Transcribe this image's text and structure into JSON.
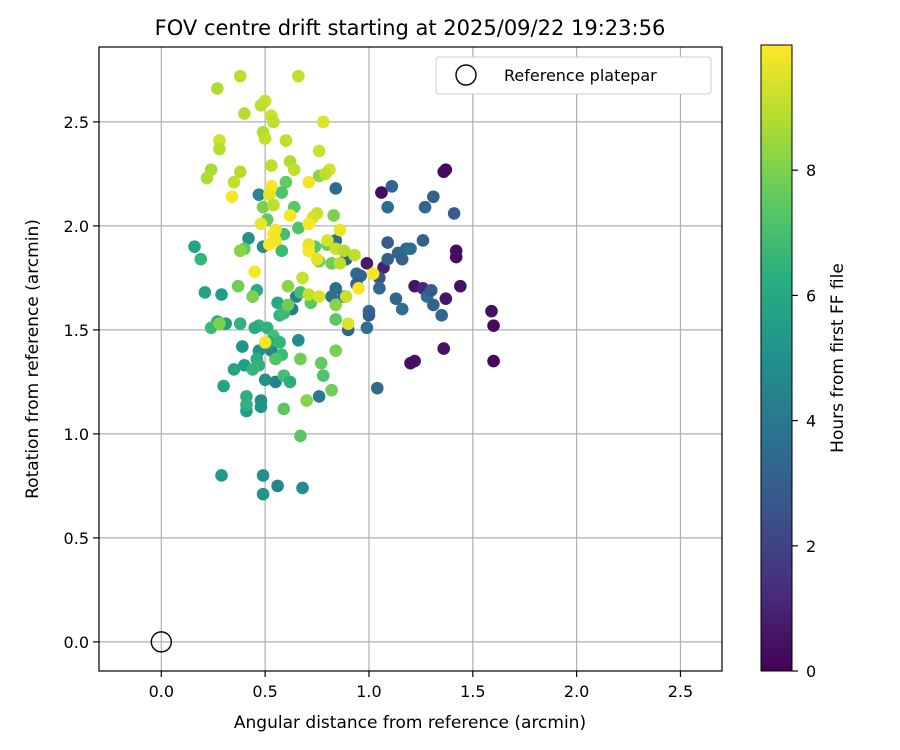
{
  "chart_data": {
    "type": "scatter",
    "title": "FOV centre drift starting at 2025/09/22 19:23:56",
    "xlabel": "Angular distance from reference (arcmin)",
    "ylabel": "Rotation from reference (arcmin)",
    "xlim": [
      -0.3,
      2.7
    ],
    "ylim": [
      -0.14,
      2.86
    ],
    "xticks": [
      0.0,
      0.5,
      1.0,
      1.5,
      2.0,
      2.5
    ],
    "xtick_labels": [
      "0.0",
      "0.5",
      "1.0",
      "1.5",
      "2.0",
      "2.5"
    ],
    "yticks": [
      0.0,
      0.5,
      1.0,
      1.5,
      2.0,
      2.5
    ],
    "ytick_labels": [
      "0.0",
      "0.5",
      "1.0",
      "1.5",
      "2.0",
      "2.5"
    ],
    "grid": true,
    "legend": {
      "entry": "Reference platepar",
      "placement": "top-right"
    },
    "reference_point": {
      "x": 0.0,
      "y": 0.0
    },
    "colorbar": {
      "label": "Hours from first FF file",
      "colormap": "viridis",
      "range": [
        0,
        10
      ],
      "ticks": [
        0,
        2,
        4,
        6,
        8
      ],
      "tick_labels": [
        "0",
        "2",
        "4",
        "6",
        "8"
      ]
    },
    "points": [
      {
        "x": 1.37,
        "y": 2.27,
        "c": 0.2
      },
      {
        "x": 1.36,
        "y": 2.26,
        "c": 0.3
      },
      {
        "x": 1.42,
        "y": 1.88,
        "c": 0.4
      },
      {
        "x": 1.42,
        "y": 1.85,
        "c": 0.3
      },
      {
        "x": 1.44,
        "y": 1.71,
        "c": 0.5
      },
      {
        "x": 1.37,
        "y": 1.65,
        "c": 0.6
      },
      {
        "x": 1.22,
        "y": 1.71,
        "c": 0.5
      },
      {
        "x": 1.59,
        "y": 1.59,
        "c": 0.4
      },
      {
        "x": 1.6,
        "y": 1.52,
        "c": 0.3
      },
      {
        "x": 1.6,
        "y": 1.35,
        "c": 0.2
      },
      {
        "x": 1.36,
        "y": 1.41,
        "c": 0.5
      },
      {
        "x": 1.22,
        "y": 1.35,
        "c": 0.6
      },
      {
        "x": 1.2,
        "y": 1.34,
        "c": 0.4
      },
      {
        "x": 1.06,
        "y": 2.16,
        "c": 0.3
      },
      {
        "x": 0.99,
        "y": 1.82,
        "c": 0.7
      },
      {
        "x": 1.07,
        "y": 1.8,
        "c": 0.9
      },
      {
        "x": 1.26,
        "y": 1.7,
        "c": 1.1
      },
      {
        "x": 1.11,
        "y": 2.19,
        "c": 3.2
      },
      {
        "x": 1.09,
        "y": 2.09,
        "c": 3.5
      },
      {
        "x": 1.31,
        "y": 2.14,
        "c": 3.1
      },
      {
        "x": 1.27,
        "y": 2.09,
        "c": 3.3
      },
      {
        "x": 1.41,
        "y": 2.06,
        "c": 2.9
      },
      {
        "x": 1.26,
        "y": 1.93,
        "c": 3.0
      },
      {
        "x": 1.18,
        "y": 1.89,
        "c": 3.4
      },
      {
        "x": 1.2,
        "y": 1.89,
        "c": 3.6
      },
      {
        "x": 1.14,
        "y": 1.87,
        "c": 3.2
      },
      {
        "x": 1.16,
        "y": 1.84,
        "c": 3.1
      },
      {
        "x": 1.09,
        "y": 1.92,
        "c": 2.8
      },
      {
        "x": 1.09,
        "y": 1.84,
        "c": 3.0
      },
      {
        "x": 1.05,
        "y": 1.75,
        "c": 2.7
      },
      {
        "x": 1.05,
        "y": 1.7,
        "c": 3.3
      },
      {
        "x": 0.94,
        "y": 1.77,
        "c": 3.5
      },
      {
        "x": 0.96,
        "y": 1.76,
        "c": 3.2
      },
      {
        "x": 0.94,
        "y": 1.72,
        "c": 3.0
      },
      {
        "x": 1.0,
        "y": 1.59,
        "c": 3.4
      },
      {
        "x": 1.0,
        "y": 1.57,
        "c": 3.0
      },
      {
        "x": 0.99,
        "y": 1.51,
        "c": 3.6
      },
      {
        "x": 0.9,
        "y": 1.5,
        "c": 3.3
      },
      {
        "x": 1.13,
        "y": 1.65,
        "c": 3.2
      },
      {
        "x": 1.16,
        "y": 1.6,
        "c": 3.6
      },
      {
        "x": 1.28,
        "y": 1.66,
        "c": 3.4
      },
      {
        "x": 1.31,
        "y": 1.62,
        "c": 3.1
      },
      {
        "x": 1.35,
        "y": 1.57,
        "c": 3.3
      },
      {
        "x": 1.3,
        "y": 1.69,
        "c": 2.9
      },
      {
        "x": 1.04,
        "y": 1.22,
        "c": 3.5
      },
      {
        "x": 0.84,
        "y": 2.18,
        "c": 3.4
      },
      {
        "x": 0.84,
        "y": 1.93,
        "c": 3.6
      },
      {
        "x": 0.89,
        "y": 1.84,
        "c": 3.2
      },
      {
        "x": 0.84,
        "y": 1.7,
        "c": 3.6
      },
      {
        "x": 0.82,
        "y": 1.66,
        "c": 3.8
      },
      {
        "x": 0.88,
        "y": 1.66,
        "c": 3.0
      },
      {
        "x": 0.76,
        "y": 1.18,
        "c": 4.0
      },
      {
        "x": 0.65,
        "y": 1.66,
        "c": 4.4
      },
      {
        "x": 0.63,
        "y": 1.6,
        "c": 4.2
      },
      {
        "x": 0.47,
        "y": 2.15,
        "c": 4.6
      },
      {
        "x": 0.42,
        "y": 1.94,
        "c": 5.0
      },
      {
        "x": 0.49,
        "y": 1.9,
        "c": 4.8
      },
      {
        "x": 0.39,
        "y": 1.42,
        "c": 5.2
      },
      {
        "x": 0.47,
        "y": 1.4,
        "c": 5.0
      },
      {
        "x": 0.53,
        "y": 1.4,
        "c": 4.6
      },
      {
        "x": 0.66,
        "y": 1.45,
        "c": 4.9
      },
      {
        "x": 0.48,
        "y": 1.16,
        "c": 4.8
      },
      {
        "x": 0.48,
        "y": 1.13,
        "c": 5.2
      },
      {
        "x": 0.55,
        "y": 1.25,
        "c": 4.4
      },
      {
        "x": 0.5,
        "y": 1.26,
        "c": 5.0
      },
      {
        "x": 0.49,
        "y": 0.8,
        "c": 5.0
      },
      {
        "x": 0.49,
        "y": 0.71,
        "c": 5.2
      },
      {
        "x": 0.56,
        "y": 0.75,
        "c": 4.6
      },
      {
        "x": 0.68,
        "y": 0.74,
        "c": 4.9
      },
      {
        "x": 0.29,
        "y": 0.8,
        "c": 5.4
      },
      {
        "x": 0.16,
        "y": 1.9,
        "c": 5.8
      },
      {
        "x": 0.19,
        "y": 1.84,
        "c": 6.6
      },
      {
        "x": 0.21,
        "y": 1.68,
        "c": 5.8
      },
      {
        "x": 0.29,
        "y": 1.67,
        "c": 5.6
      },
      {
        "x": 0.27,
        "y": 1.54,
        "c": 6.2
      },
      {
        "x": 0.31,
        "y": 1.53,
        "c": 5.6
      },
      {
        "x": 0.24,
        "y": 1.51,
        "c": 6.8
      },
      {
        "x": 0.38,
        "y": 1.53,
        "c": 6.4
      },
      {
        "x": 0.35,
        "y": 1.31,
        "c": 5.8
      },
      {
        "x": 0.4,
        "y": 1.33,
        "c": 5.6
      },
      {
        "x": 0.3,
        "y": 1.23,
        "c": 5.8
      },
      {
        "x": 0.41,
        "y": 1.18,
        "c": 6.2
      },
      {
        "x": 0.41,
        "y": 1.11,
        "c": 5.6
      },
      {
        "x": 0.41,
        "y": 1.14,
        "c": 6.4
      },
      {
        "x": 0.46,
        "y": 1.69,
        "c": 6.0
      },
      {
        "x": 0.44,
        "y": 1.66,
        "c": 6.8
      },
      {
        "x": 0.47,
        "y": 1.52,
        "c": 6.6
      },
      {
        "x": 0.45,
        "y": 1.51,
        "c": 6.2
      },
      {
        "x": 0.51,
        "y": 1.51,
        "c": 6.4
      },
      {
        "x": 0.54,
        "y": 1.47,
        "c": 7.0
      },
      {
        "x": 0.52,
        "y": 1.44,
        "c": 6.0
      },
      {
        "x": 0.57,
        "y": 1.44,
        "c": 6.6
      },
      {
        "x": 0.58,
        "y": 1.38,
        "c": 6.8
      },
      {
        "x": 0.46,
        "y": 1.36,
        "c": 6.2
      },
      {
        "x": 0.55,
        "y": 1.36,
        "c": 7.2
      },
      {
        "x": 0.47,
        "y": 1.33,
        "c": 6.4
      },
      {
        "x": 0.44,
        "y": 1.31,
        "c": 6.6
      },
      {
        "x": 0.59,
        "y": 1.28,
        "c": 7.0
      },
      {
        "x": 0.62,
        "y": 1.25,
        "c": 6.2
      },
      {
        "x": 0.59,
        "y": 1.12,
        "c": 7.4
      },
      {
        "x": 0.56,
        "y": 1.63,
        "c": 6.0
      },
      {
        "x": 0.57,
        "y": 1.57,
        "c": 6.6
      },
      {
        "x": 0.59,
        "y": 1.58,
        "c": 6.8
      },
      {
        "x": 0.67,
        "y": 1.68,
        "c": 7.0
      },
      {
        "x": 0.6,
        "y": 2.21,
        "c": 7.6
      },
      {
        "x": 0.58,
        "y": 2.16,
        "c": 7.2
      },
      {
        "x": 0.64,
        "y": 2.09,
        "c": 7.4
      },
      {
        "x": 0.59,
        "y": 1.96,
        "c": 7.0
      },
      {
        "x": 0.58,
        "y": 1.88,
        "c": 6.8
      },
      {
        "x": 0.51,
        "y": 2.03,
        "c": 7.6
      },
      {
        "x": 0.66,
        "y": 1.99,
        "c": 7.2
      },
      {
        "x": 0.74,
        "y": 1.9,
        "c": 7.4
      },
      {
        "x": 0.8,
        "y": 1.91,
        "c": 7.6
      },
      {
        "x": 0.83,
        "y": 2.05,
        "c": 8.0
      },
      {
        "x": 0.76,
        "y": 2.24,
        "c": 8.2
      },
      {
        "x": 0.76,
        "y": 1.83,
        "c": 8.0
      },
      {
        "x": 0.82,
        "y": 1.82,
        "c": 7.8
      },
      {
        "x": 0.72,
        "y": 1.63,
        "c": 7.4
      },
      {
        "x": 0.84,
        "y": 1.62,
        "c": 8.2
      },
      {
        "x": 0.84,
        "y": 1.55,
        "c": 7.4
      },
      {
        "x": 0.77,
        "y": 1.34,
        "c": 7.6
      },
      {
        "x": 0.78,
        "y": 1.28,
        "c": 7.2
      },
      {
        "x": 0.82,
        "y": 1.21,
        "c": 7.8
      },
      {
        "x": 0.84,
        "y": 1.4,
        "c": 8.0
      },
      {
        "x": 0.67,
        "y": 1.36,
        "c": 7.8
      },
      {
        "x": 0.7,
        "y": 1.16,
        "c": 8.2
      },
      {
        "x": 0.67,
        "y": 0.99,
        "c": 7.4
      },
      {
        "x": 0.37,
        "y": 1.71,
        "c": 7.8
      },
      {
        "x": 0.44,
        "y": 1.66,
        "c": 8.0
      },
      {
        "x": 0.4,
        "y": 1.89,
        "c": 7.6
      },
      {
        "x": 0.38,
        "y": 1.88,
        "c": 8.2
      },
      {
        "x": 0.49,
        "y": 2.09,
        "c": 8.0
      },
      {
        "x": 0.61,
        "y": 1.71,
        "c": 8.2
      },
      {
        "x": 0.61,
        "y": 1.62,
        "c": 7.8
      },
      {
        "x": 0.28,
        "y": 1.53,
        "c": 8.0
      },
      {
        "x": 0.38,
        "y": 2.72,
        "c": 9.0
      },
      {
        "x": 0.66,
        "y": 2.72,
        "c": 9.1
      },
      {
        "x": 0.27,
        "y": 2.66,
        "c": 8.8
      },
      {
        "x": 0.5,
        "y": 2.6,
        "c": 9.2
      },
      {
        "x": 0.48,
        "y": 2.58,
        "c": 9.0
      },
      {
        "x": 0.4,
        "y": 2.54,
        "c": 8.9
      },
      {
        "x": 0.53,
        "y": 2.53,
        "c": 9.3
      },
      {
        "x": 0.54,
        "y": 2.5,
        "c": 9.0
      },
      {
        "x": 0.78,
        "y": 2.5,
        "c": 9.5
      },
      {
        "x": 0.49,
        "y": 2.45,
        "c": 8.8
      },
      {
        "x": 0.5,
        "y": 2.42,
        "c": 9.1
      },
      {
        "x": 0.28,
        "y": 2.41,
        "c": 9.3
      },
      {
        "x": 0.6,
        "y": 2.41,
        "c": 9.0
      },
      {
        "x": 0.28,
        "y": 2.37,
        "c": 8.9
      },
      {
        "x": 0.76,
        "y": 2.36,
        "c": 9.2
      },
      {
        "x": 0.62,
        "y": 2.31,
        "c": 8.8
      },
      {
        "x": 0.53,
        "y": 2.29,
        "c": 9.0
      },
      {
        "x": 0.64,
        "y": 2.27,
        "c": 9.1
      },
      {
        "x": 0.81,
        "y": 2.27,
        "c": 9.4
      },
      {
        "x": 0.24,
        "y": 2.27,
        "c": 8.7
      },
      {
        "x": 0.38,
        "y": 2.26,
        "c": 8.9
      },
      {
        "x": 0.79,
        "y": 2.25,
        "c": 9.0
      },
      {
        "x": 0.22,
        "y": 2.23,
        "c": 8.8
      },
      {
        "x": 0.35,
        "y": 2.21,
        "c": 9.1
      },
      {
        "x": 0.71,
        "y": 2.21,
        "c": 9.8
      },
      {
        "x": 0.53,
        "y": 2.19,
        "c": 9.9
      },
      {
        "x": 0.52,
        "y": 2.15,
        "c": 9.6
      },
      {
        "x": 0.34,
        "y": 2.14,
        "c": 9.9
      },
      {
        "x": 0.54,
        "y": 2.1,
        "c": 9.0
      },
      {
        "x": 0.62,
        "y": 2.05,
        "c": 9.9
      },
      {
        "x": 0.75,
        "y": 2.06,
        "c": 9.2
      },
      {
        "x": 0.73,
        "y": 2.04,
        "c": 9.4
      },
      {
        "x": 0.48,
        "y": 2.01,
        "c": 9.7
      },
      {
        "x": 0.71,
        "y": 2.01,
        "c": 9.9
      },
      {
        "x": 0.55,
        "y": 1.98,
        "c": 9.8
      },
      {
        "x": 0.54,
        "y": 1.96,
        "c": 9.9
      },
      {
        "x": 0.86,
        "y": 1.98,
        "c": 9.7
      },
      {
        "x": 0.55,
        "y": 1.93,
        "c": 9.8
      },
      {
        "x": 0.52,
        "y": 1.91,
        "c": 9.9
      },
      {
        "x": 0.71,
        "y": 1.91,
        "c": 9.6
      },
      {
        "x": 0.71,
        "y": 1.88,
        "c": 9.9
      },
      {
        "x": 0.8,
        "y": 1.93,
        "c": 9.4
      },
      {
        "x": 0.84,
        "y": 1.89,
        "c": 9.2
      },
      {
        "x": 0.93,
        "y": 1.86,
        "c": 9.0
      },
      {
        "x": 0.88,
        "y": 1.88,
        "c": 8.9
      },
      {
        "x": 0.75,
        "y": 1.84,
        "c": 9.6
      },
      {
        "x": 0.45,
        "y": 1.78,
        "c": 9.9
      },
      {
        "x": 0.68,
        "y": 1.75,
        "c": 9.2
      },
      {
        "x": 0.86,
        "y": 1.82,
        "c": 9.0
      },
      {
        "x": 0.95,
        "y": 1.7,
        "c": 9.9
      },
      {
        "x": 0.71,
        "y": 1.67,
        "c": 9.1
      },
      {
        "x": 0.76,
        "y": 1.66,
        "c": 9.4
      },
      {
        "x": 0.89,
        "y": 1.66,
        "c": 9.2
      },
      {
        "x": 1.02,
        "y": 1.77,
        "c": 9.9
      },
      {
        "x": 0.9,
        "y": 1.53,
        "c": 9.5
      },
      {
        "x": 0.5,
        "y": 1.44,
        "c": 9.9
      }
    ]
  }
}
